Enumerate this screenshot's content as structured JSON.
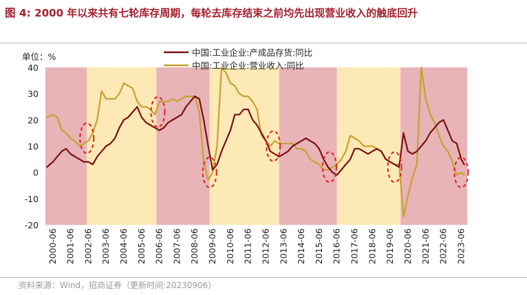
{
  "title": {
    "prefix": "图 4:",
    "text": "2000 年以来共有七轮库存周期，每轮去库存结束之前均先出现营业收入的触底回升"
  },
  "source": "资料来源：Wind，招商证券（更新时间:20230906）",
  "colors": {
    "accent": "#a5202f",
    "inventory": "#7a1010",
    "revenue": "#c8a030",
    "band_red": "#e8b4b8",
    "band_yellow": "#fde9b6",
    "circle": "#e0201e"
  },
  "chart_data": {
    "type": "line",
    "ylabel": "单位：%",
    "ylim": [
      -20,
      40
    ],
    "yticks": [
      -20,
      -10,
      0,
      10,
      20,
      30,
      40
    ],
    "xlim": [
      "2000-01",
      "2023-10"
    ],
    "xticks": [
      "2000-06",
      "2001-06",
      "2002-06",
      "2003-06",
      "2004-06",
      "2005-06",
      "2006-06",
      "2007-06",
      "2008-06",
      "2009-06",
      "2010-06",
      "2011-06",
      "2012-06",
      "2013-06",
      "2014-06",
      "2015-06",
      "2016-06",
      "2017-06",
      "2018-06",
      "2019-06",
      "2020-06",
      "2021-06",
      "2022-06",
      "2023-06"
    ],
    "legend": "top",
    "bands": [
      {
        "start": "2000-01",
        "end": "2002-05",
        "kind": "red"
      },
      {
        "start": "2002-05",
        "end": "2006-04",
        "kind": "yellow"
      },
      {
        "start": "2006-04",
        "end": "2009-04",
        "kind": "red"
      },
      {
        "start": "2009-04",
        "end": "2013-03",
        "kind": "yellow"
      },
      {
        "start": "2013-03",
        "end": "2016-06",
        "kind": "red"
      },
      {
        "start": "2016-06",
        "end": "2020-01",
        "kind": "yellow"
      },
      {
        "start": "2020-01",
        "end": "2023-10",
        "kind": "red"
      }
    ],
    "circles": [
      {
        "x": "2002-05",
        "y": 13
      },
      {
        "x": "2006-05",
        "y": 23
      },
      {
        "x": "2009-04",
        "y": 0
      },
      {
        "x": "2012-11",
        "y": 10
      },
      {
        "x": "2016-01",
        "y": 2
      },
      {
        "x": "2019-09",
        "y": 2
      },
      {
        "x": "2023-06",
        "y": 0
      }
    ],
    "series": [
      {
        "name": "中国:工业企业:产成品存货:同比",
        "color": "#7a1010",
        "points": [
          [
            "2000-02",
            2
          ],
          [
            "2000-06",
            4
          ],
          [
            "2000-09",
            6
          ],
          [
            "2000-12",
            8
          ],
          [
            "2001-03",
            9
          ],
          [
            "2001-06",
            7
          ],
          [
            "2001-09",
            6
          ],
          [
            "2001-12",
            5
          ],
          [
            "2002-03",
            4
          ],
          [
            "2002-06",
            4
          ],
          [
            "2002-09",
            3
          ],
          [
            "2002-12",
            6
          ],
          [
            "2003-03",
            8
          ],
          [
            "2003-06",
            10
          ],
          [
            "2003-09",
            11
          ],
          [
            "2003-12",
            13
          ],
          [
            "2004-03",
            17
          ],
          [
            "2004-06",
            20
          ],
          [
            "2004-09",
            21
          ],
          [
            "2004-12",
            23
          ],
          [
            "2005-03",
            25
          ],
          [
            "2005-06",
            21
          ],
          [
            "2005-09",
            19
          ],
          [
            "2005-12",
            18
          ],
          [
            "2006-03",
            17
          ],
          [
            "2006-06",
            16
          ],
          [
            "2006-09",
            17
          ],
          [
            "2006-12",
            19
          ],
          [
            "2007-03",
            20
          ],
          [
            "2007-06",
            21
          ],
          [
            "2007-09",
            22
          ],
          [
            "2007-12",
            25
          ],
          [
            "2008-03",
            27
          ],
          [
            "2008-06",
            29
          ],
          [
            "2008-09",
            28
          ],
          [
            "2008-12",
            20
          ],
          [
            "2009-03",
            10
          ],
          [
            "2009-06",
            1
          ],
          [
            "2009-09",
            3
          ],
          [
            "2009-12",
            8
          ],
          [
            "2010-03",
            12
          ],
          [
            "2010-06",
            16
          ],
          [
            "2010-09",
            22
          ],
          [
            "2010-12",
            22
          ],
          [
            "2011-03",
            24
          ],
          [
            "2011-06",
            24
          ],
          [
            "2011-09",
            20
          ],
          [
            "2011-12",
            18
          ],
          [
            "2012-03",
            15
          ],
          [
            "2012-06",
            12
          ],
          [
            "2012-09",
            8
          ],
          [
            "2012-12",
            7
          ],
          [
            "2013-03",
            6
          ],
          [
            "2013-06",
            7
          ],
          [
            "2013-09",
            8
          ],
          [
            "2013-12",
            10
          ],
          [
            "2014-03",
            11
          ],
          [
            "2014-06",
            12
          ],
          [
            "2014-09",
            13
          ],
          [
            "2014-12",
            12
          ],
          [
            "2015-03",
            11
          ],
          [
            "2015-06",
            9
          ],
          [
            "2015-09",
            5
          ],
          [
            "2015-12",
            2
          ],
          [
            "2016-03",
            0
          ],
          [
            "2016-06",
            -1
          ],
          [
            "2016-09",
            1
          ],
          [
            "2016-12",
            3
          ],
          [
            "2017-03",
            5
          ],
          [
            "2017-06",
            9
          ],
          [
            "2017-09",
            9
          ],
          [
            "2017-12",
            8
          ],
          [
            "2018-03",
            7
          ],
          [
            "2018-06",
            8
          ],
          [
            "2018-09",
            9
          ],
          [
            "2018-12",
            8
          ],
          [
            "2019-03",
            5
          ],
          [
            "2019-06",
            4
          ],
          [
            "2019-09",
            3
          ],
          [
            "2019-12",
            2
          ],
          [
            "2020-03",
            15
          ],
          [
            "2020-06",
            8
          ],
          [
            "2020-09",
            7
          ],
          [
            "2020-12",
            8
          ],
          [
            "2021-03",
            10
          ],
          [
            "2021-06",
            12
          ],
          [
            "2021-09",
            15
          ],
          [
            "2021-12",
            17
          ],
          [
            "2022-03",
            19
          ],
          [
            "2022-06",
            20
          ],
          [
            "2022-09",
            16
          ],
          [
            "2022-12",
            12
          ],
          [
            "2023-03",
            11
          ],
          [
            "2023-06",
            5
          ],
          [
            "2023-08",
            3
          ]
        ]
      },
      {
        "name": "中国:工业企业:营业收入:同比",
        "color": "#c8a030",
        "points": [
          [
            "2000-02",
            21
          ],
          [
            "2000-06",
            22
          ],
          [
            "2000-09",
            21
          ],
          [
            "2000-12",
            16
          ],
          [
            "2001-03",
            15
          ],
          [
            "2001-06",
            13
          ],
          [
            "2001-09",
            12
          ],
          [
            "2001-12",
            10
          ],
          [
            "2002-03",
            11
          ],
          [
            "2002-06",
            12
          ],
          [
            "2002-09",
            15
          ],
          [
            "2002-12",
            20
          ],
          [
            "2003-03",
            31
          ],
          [
            "2003-06",
            28
          ],
          [
            "2003-09",
            28
          ],
          [
            "2003-12",
            28
          ],
          [
            "2004-03",
            30
          ],
          [
            "2004-06",
            34
          ],
          [
            "2004-09",
            33
          ],
          [
            "2004-12",
            32
          ],
          [
            "2005-03",
            27
          ],
          [
            "2005-06",
            25
          ],
          [
            "2005-09",
            25
          ],
          [
            "2005-12",
            24
          ],
          [
            "2006-03",
            22
          ],
          [
            "2006-06",
            27
          ],
          [
            "2006-09",
            27
          ],
          [
            "2006-12",
            27
          ],
          [
            "2007-03",
            28
          ],
          [
            "2007-06",
            27
          ],
          [
            "2007-09",
            28
          ],
          [
            "2007-12",
            29
          ],
          [
            "2008-03",
            29
          ],
          [
            "2008-06",
            29
          ],
          [
            "2008-09",
            23
          ],
          [
            "2008-12",
            4
          ],
          [
            "2009-03",
            -3
          ],
          [
            "2009-06",
            0
          ],
          [
            "2009-09",
            10
          ],
          [
            "2009-12",
            40
          ],
          [
            "2010-03",
            38
          ],
          [
            "2010-06",
            34
          ],
          [
            "2010-09",
            33
          ],
          [
            "2010-12",
            30
          ],
          [
            "2011-03",
            29
          ],
          [
            "2011-06",
            29
          ],
          [
            "2011-09",
            27
          ],
          [
            "2011-12",
            24
          ],
          [
            "2012-03",
            14
          ],
          [
            "2012-06",
            12
          ],
          [
            "2012-09",
            10
          ],
          [
            "2012-12",
            12
          ],
          [
            "2013-03",
            11
          ],
          [
            "2013-06",
            11
          ],
          [
            "2013-09",
            11
          ],
          [
            "2013-12",
            11
          ],
          [
            "2014-03",
            9
          ],
          [
            "2014-06",
            9
          ],
          [
            "2014-09",
            8
          ],
          [
            "2014-12",
            5
          ],
          [
            "2015-03",
            4
          ],
          [
            "2015-06",
            3
          ],
          [
            "2015-09",
            1
          ],
          [
            "2015-12",
            1
          ],
          [
            "2016-03",
            2
          ],
          [
            "2016-06",
            3
          ],
          [
            "2016-09",
            5
          ],
          [
            "2016-12",
            8
          ],
          [
            "2017-03",
            14
          ],
          [
            "2017-06",
            13
          ],
          [
            "2017-09",
            12
          ],
          [
            "2017-12",
            10
          ],
          [
            "2018-03",
            10
          ],
          [
            "2018-06",
            10
          ],
          [
            "2018-09",
            9
          ],
          [
            "2018-12",
            8
          ],
          [
            "2019-03",
            5
          ],
          [
            "2019-06",
            4
          ],
          [
            "2019-09",
            3
          ],
          [
            "2019-12",
            3
          ],
          [
            "2020-03",
            -17
          ],
          [
            "2020-06",
            -9
          ],
          [
            "2020-09",
            -2
          ],
          [
            "2020-12",
            3
          ],
          [
            "2021-03",
            40
          ],
          [
            "2021-06",
            28
          ],
          [
            "2021-09",
            22
          ],
          [
            "2021-12",
            19
          ],
          [
            "2022-03",
            14
          ],
          [
            "2022-06",
            10
          ],
          [
            "2022-09",
            8
          ],
          [
            "2022-12",
            4
          ],
          [
            "2023-03",
            -1
          ],
          [
            "2023-06",
            0
          ],
          [
            "2023-08",
            -1
          ]
        ]
      }
    ]
  }
}
